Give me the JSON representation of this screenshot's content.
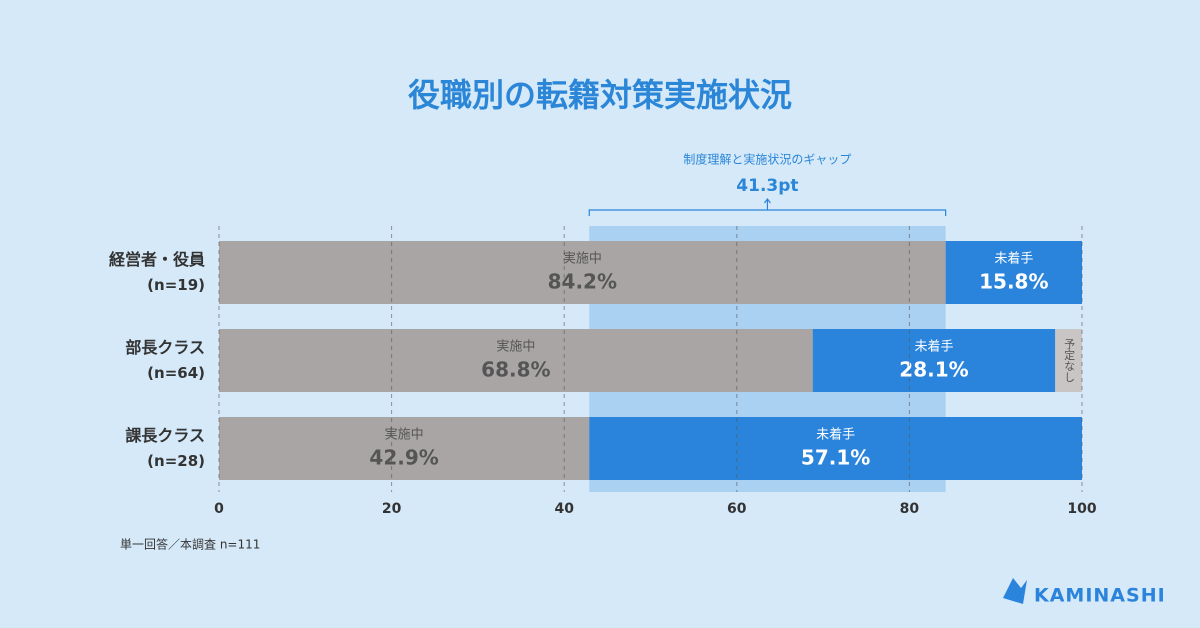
{
  "chart_data": {
    "type": "stacked-barh",
    "title": "役職別の転籍対策実施状況",
    "categories": [
      "経営者・役員",
      "部長クラス",
      "課長クラス"
    ],
    "category_notes": [
      "(n=19)",
      "(n=64)",
      "(n=28)"
    ],
    "series": [
      {
        "name": "実施中",
        "color": "#a9a5a5",
        "values": [
          84.2,
          68.8,
          42.9
        ],
        "value_labels": [
          "84.2%",
          "68.8%",
          "42.9%"
        ]
      },
      {
        "name": "未着手",
        "color": "#2b84dc",
        "values": [
          15.8,
          28.1,
          57.1
        ],
        "value_labels": [
          "15.8%",
          "28.1%",
          "57.1%"
        ]
      },
      {
        "name": "予定なし",
        "color": "#c9c5c5",
        "values": [
          null,
          3.1,
          null
        ]
      }
    ],
    "xlim": [
      0,
      100
    ],
    "xticks": [
      0,
      20,
      40,
      60,
      80,
      100
    ],
    "grid": true,
    "annotation": {
      "text": "制度理解と実施状況のギャップ",
      "value": 41.3,
      "value_label": "41.3pt"
    },
    "footnote": "単一回答／本調査 n=111",
    "logo": "KAMINASHI"
  }
}
